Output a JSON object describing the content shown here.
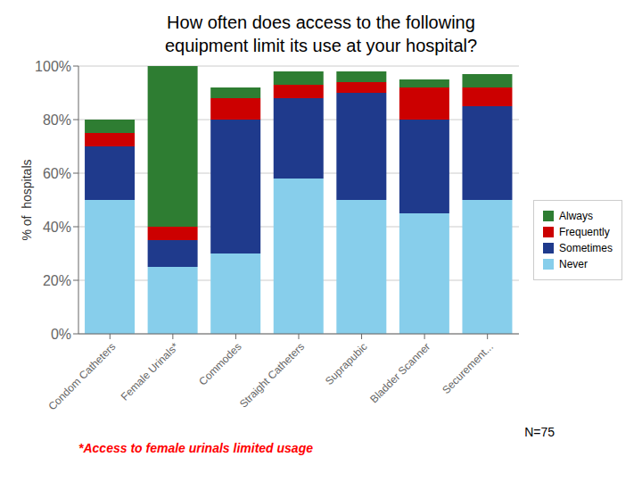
{
  "chart_data": {
    "type": "bar",
    "stacked": true,
    "grid": true,
    "legend": "right",
    "title": "How often does access to the following\nequipment limit its use at your hospital?",
    "ylabel": "% of  hospitals",
    "categories": [
      "Condom Catheters",
      "Female Urinals*",
      "Commodes",
      "Straight Catheters",
      "Suprapubic",
      "Bladder Scanner",
      "Securement..."
    ],
    "series": [
      {
        "name": "Never",
        "color": "#87CEEB",
        "values": [
          50,
          25,
          30,
          58,
          50,
          45,
          50
        ]
      },
      {
        "name": "Sometimes",
        "color": "#1F3A8C",
        "values": [
          20,
          10,
          50,
          30,
          40,
          35,
          35
        ]
      },
      {
        "name": "Frequently",
        "color": "#CC0000",
        "values": [
          5,
          5,
          8,
          5,
          4,
          12,
          7
        ]
      },
      {
        "name": "Always",
        "color": "#2E7D32",
        "values": [
          5,
          60,
          4,
          5,
          4,
          3,
          5
        ]
      }
    ],
    "ylim": [
      0,
      100
    ],
    "yticks": [
      {
        "value": 0,
        "label": "0%"
      },
      {
        "value": 20,
        "label": "20%"
      },
      {
        "value": 40,
        "label": "40%"
      },
      {
        "value": 60,
        "label": "60%"
      },
      {
        "value": 80,
        "label": "80%"
      },
      {
        "value": 100,
        "label": "100%"
      }
    ],
    "annotations": [
      {
        "text": "N=75"
      },
      {
        "text": "*Access to female urinals limited usage",
        "color": "red"
      }
    ]
  }
}
